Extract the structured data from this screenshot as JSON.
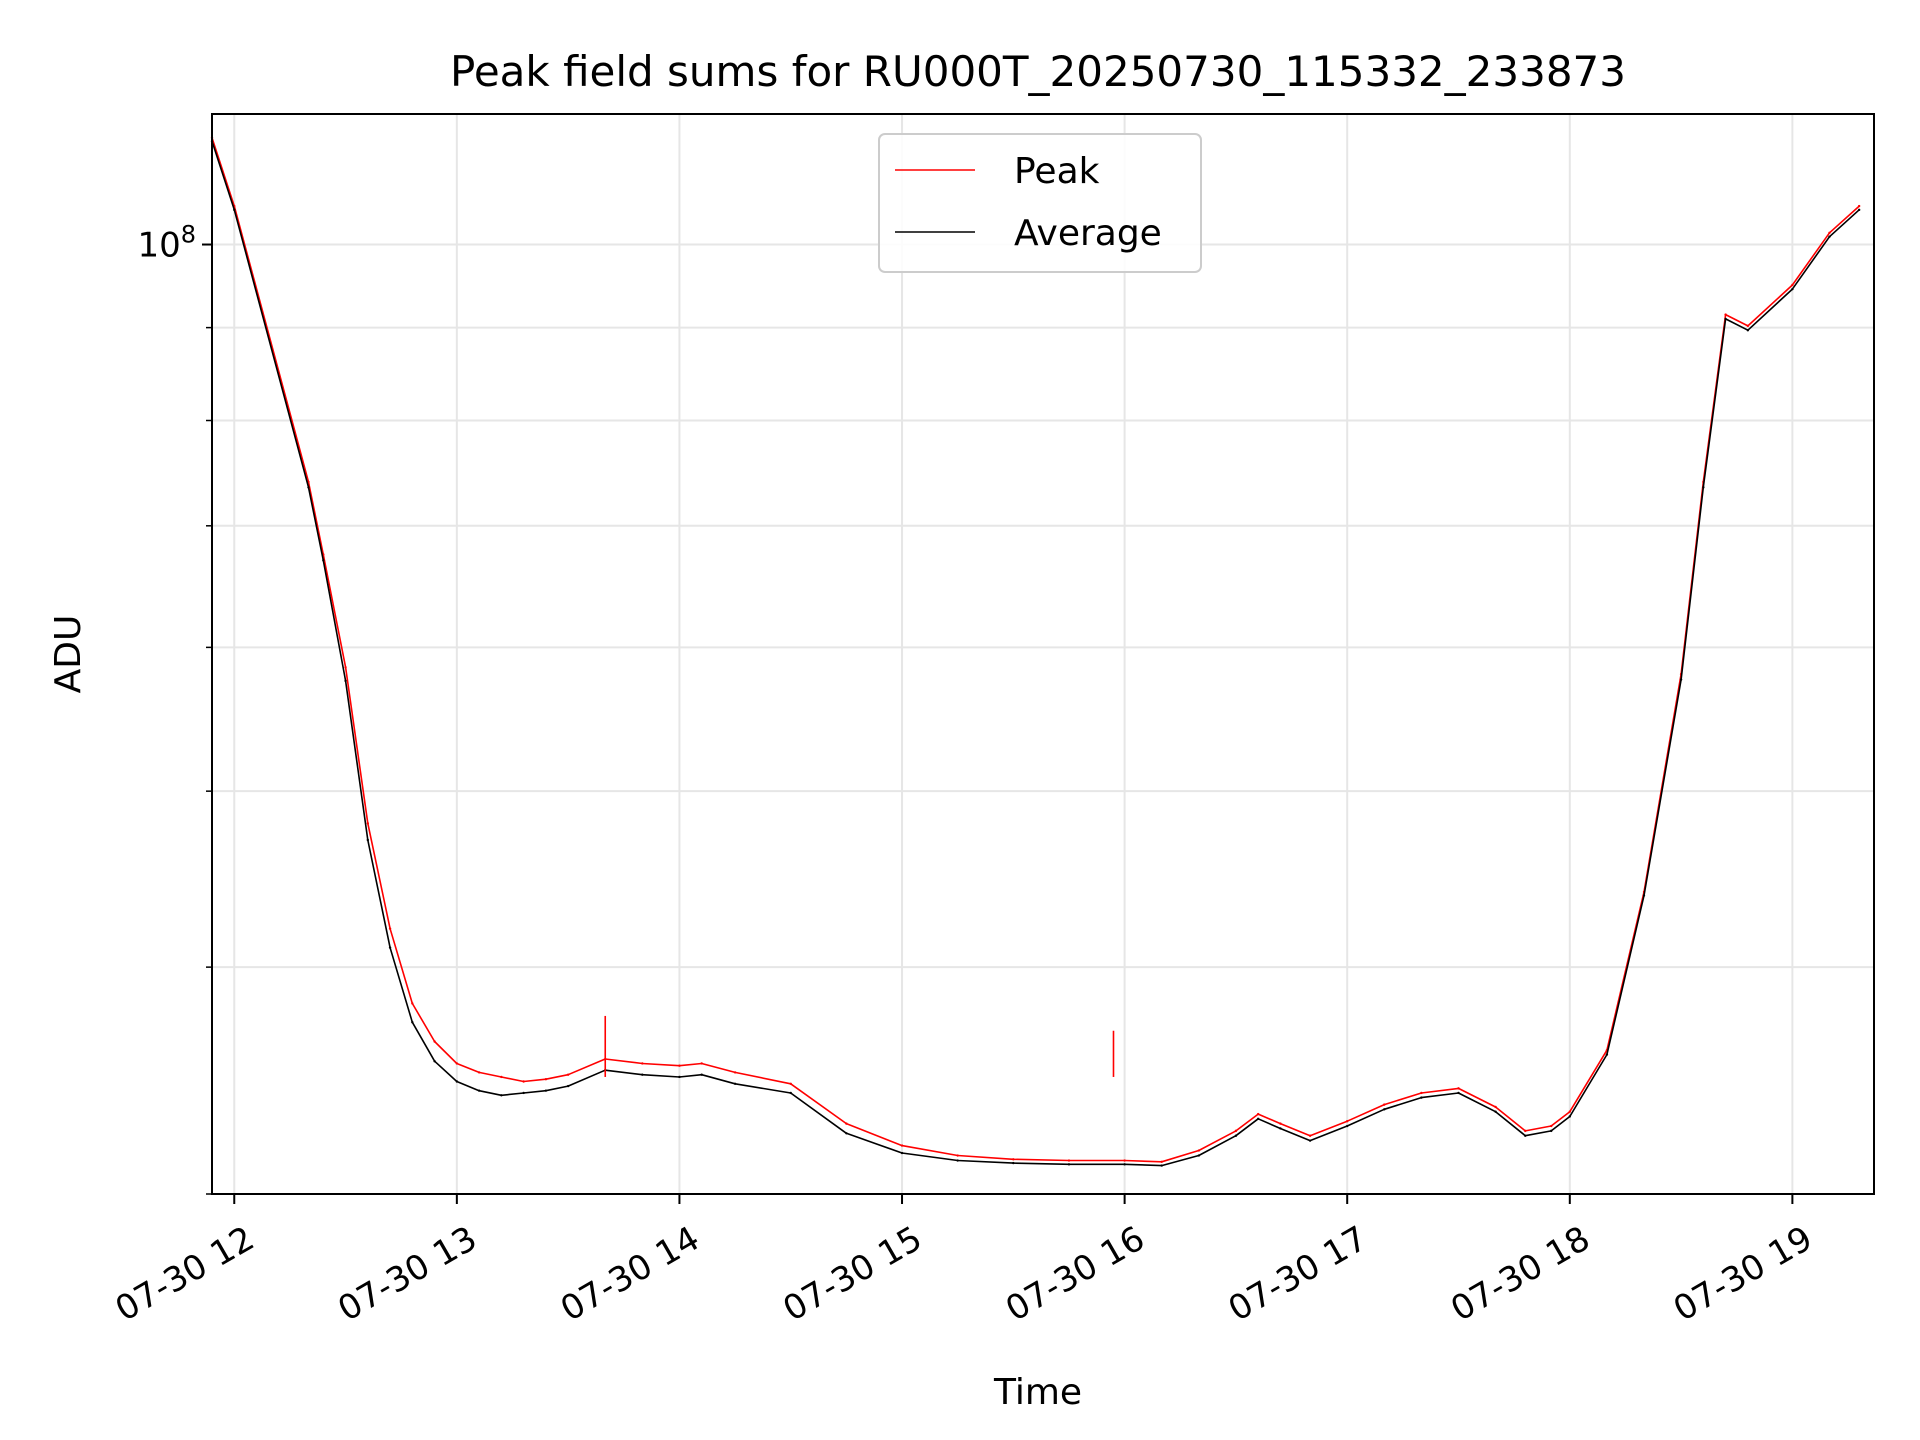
{
  "chart_data": {
    "type": "line",
    "title": "Peak field sums for RU000T_20250730_115332_233873",
    "xlabel": "Time",
    "ylabel": "ADU",
    "y_scale": "log",
    "grid": true,
    "legend_position": "top-center",
    "xlim": [
      "2025-07-30 11:54",
      "2025-07-30 19:22"
    ],
    "ylim": [
      30000000,
      118000000
    ],
    "x_ticks": [
      {
        "t": "2025-07-30 12:00",
        "label": "07-30 12"
      },
      {
        "t": "2025-07-30 13:00",
        "label": "07-30 13"
      },
      {
        "t": "2025-07-30 14:00",
        "label": "07-30 14"
      },
      {
        "t": "2025-07-30 15:00",
        "label": "07-30 15"
      },
      {
        "t": "2025-07-30 16:00",
        "label": "07-30 16"
      },
      {
        "t": "2025-07-30 17:00",
        "label": "07-30 17"
      },
      {
        "t": "2025-07-30 18:00",
        "label": "07-30 18"
      },
      {
        "t": "2025-07-30 19:00",
        "label": "07-30 19"
      }
    ],
    "y_ticks_major": [
      {
        "value": 100000000,
        "label_base": "10",
        "label_exp": "8"
      }
    ],
    "y_ticks_minor": [
      30000000,
      40000000,
      50000000,
      60000000,
      70000000,
      80000000,
      90000000
    ],
    "series": [
      {
        "name": "Peak",
        "color": "#ff0000",
        "x": [
          "2025-07-30 11:54",
          "2025-07-30 12:00",
          "2025-07-30 12:20",
          "2025-07-30 12:24",
          "2025-07-30 12:30",
          "2025-07-30 12:36",
          "2025-07-30 12:42",
          "2025-07-30 12:48",
          "2025-07-30 12:54",
          "2025-07-30 13:00",
          "2025-07-30 13:06",
          "2025-07-30 13:12",
          "2025-07-30 13:18",
          "2025-07-30 13:24",
          "2025-07-30 13:30",
          "2025-07-30 13:40",
          "2025-07-30 13:50",
          "2025-07-30 14:00",
          "2025-07-30 14:06",
          "2025-07-30 14:15",
          "2025-07-30 14:30",
          "2025-07-30 14:45",
          "2025-07-30 15:00",
          "2025-07-30 15:15",
          "2025-07-30 15:30",
          "2025-07-30 15:45",
          "2025-07-30 16:00",
          "2025-07-30 16:10",
          "2025-07-30 16:20",
          "2025-07-30 16:30",
          "2025-07-30 16:36",
          "2025-07-30 16:42",
          "2025-07-30 16:50",
          "2025-07-30 17:00",
          "2025-07-30 17:10",
          "2025-07-30 17:20",
          "2025-07-30 17:30",
          "2025-07-30 17:40",
          "2025-07-30 17:48",
          "2025-07-30 17:55",
          "2025-07-30 18:00",
          "2025-07-30 18:10",
          "2025-07-30 18:20",
          "2025-07-30 18:30",
          "2025-07-30 18:36",
          "2025-07-30 18:42",
          "2025-07-30 18:48",
          "2025-07-30 19:00",
          "2025-07-30 19:10",
          "2025-07-30 19:18"
        ],
        "values": [
          114500000,
          105000000,
          74000000,
          67500000,
          58500000,
          48000000,
          42000000,
          38200000,
          36400000,
          35400000,
          35000000,
          34800000,
          34600000,
          34700000,
          34900000,
          35600000,
          35400000,
          35300000,
          35400000,
          35000000,
          34500000,
          32800000,
          31900000,
          31500000,
          31350000,
          31300000,
          31300000,
          31250000,
          31700000,
          32500000,
          33200000,
          32800000,
          32300000,
          32900000,
          33600000,
          34100000,
          34300000,
          33500000,
          32500000,
          32700000,
          33300000,
          36000000,
          44000000,
          58000000,
          74000000,
          91500000,
          90200000,
          95000000,
          101500000,
          105000000
        ]
      },
      {
        "name": "Average",
        "color": "#000000",
        "x": [
          "2025-07-30 11:54",
          "2025-07-30 12:00",
          "2025-07-30 12:20",
          "2025-07-30 12:24",
          "2025-07-30 12:30",
          "2025-07-30 12:36",
          "2025-07-30 12:42",
          "2025-07-30 12:48",
          "2025-07-30 12:54",
          "2025-07-30 13:00",
          "2025-07-30 13:06",
          "2025-07-30 13:12",
          "2025-07-30 13:18",
          "2025-07-30 13:24",
          "2025-07-30 13:30",
          "2025-07-30 13:40",
          "2025-07-30 13:50",
          "2025-07-30 14:00",
          "2025-07-30 14:06",
          "2025-07-30 14:15",
          "2025-07-30 14:30",
          "2025-07-30 14:45",
          "2025-07-30 15:00",
          "2025-07-30 15:15",
          "2025-07-30 15:30",
          "2025-07-30 15:45",
          "2025-07-30 16:00",
          "2025-07-30 16:10",
          "2025-07-30 16:20",
          "2025-07-30 16:30",
          "2025-07-30 16:36",
          "2025-07-30 16:42",
          "2025-07-30 16:50",
          "2025-07-30 17:00",
          "2025-07-30 17:10",
          "2025-07-30 17:20",
          "2025-07-30 17:30",
          "2025-07-30 17:40",
          "2025-07-30 17:48",
          "2025-07-30 17:55",
          "2025-07-30 18:00",
          "2025-07-30 18:10",
          "2025-07-30 18:20",
          "2025-07-30 18:30",
          "2025-07-30 18:36",
          "2025-07-30 18:42",
          "2025-07-30 18:48",
          "2025-07-30 19:00",
          "2025-07-30 19:10",
          "2025-07-30 19:18"
        ],
        "values": [
          114000000,
          104500000,
          73500000,
          67000000,
          57500000,
          47000000,
          41000000,
          37300000,
          35500000,
          34600000,
          34200000,
          34000000,
          34100000,
          34200000,
          34400000,
          35100000,
          34900000,
          34800000,
          34900000,
          34500000,
          34100000,
          32400000,
          31600000,
          31300000,
          31200000,
          31150000,
          31150000,
          31100000,
          31500000,
          32300000,
          33000000,
          32600000,
          32100000,
          32700000,
          33400000,
          33900000,
          34100000,
          33300000,
          32300000,
          32500000,
          33100000,
          35800000,
          43800000,
          57600000,
          73500000,
          91000000,
          89700000,
          94500000,
          101000000,
          104500000
        ]
      }
    ],
    "spikes": [
      {
        "series": "Peak",
        "x": "2025-07-30 13:40",
        "value": 37600000
      },
      {
        "series": "Peak",
        "x": "2025-07-30 15:57",
        "value": 36900000
      }
    ]
  }
}
